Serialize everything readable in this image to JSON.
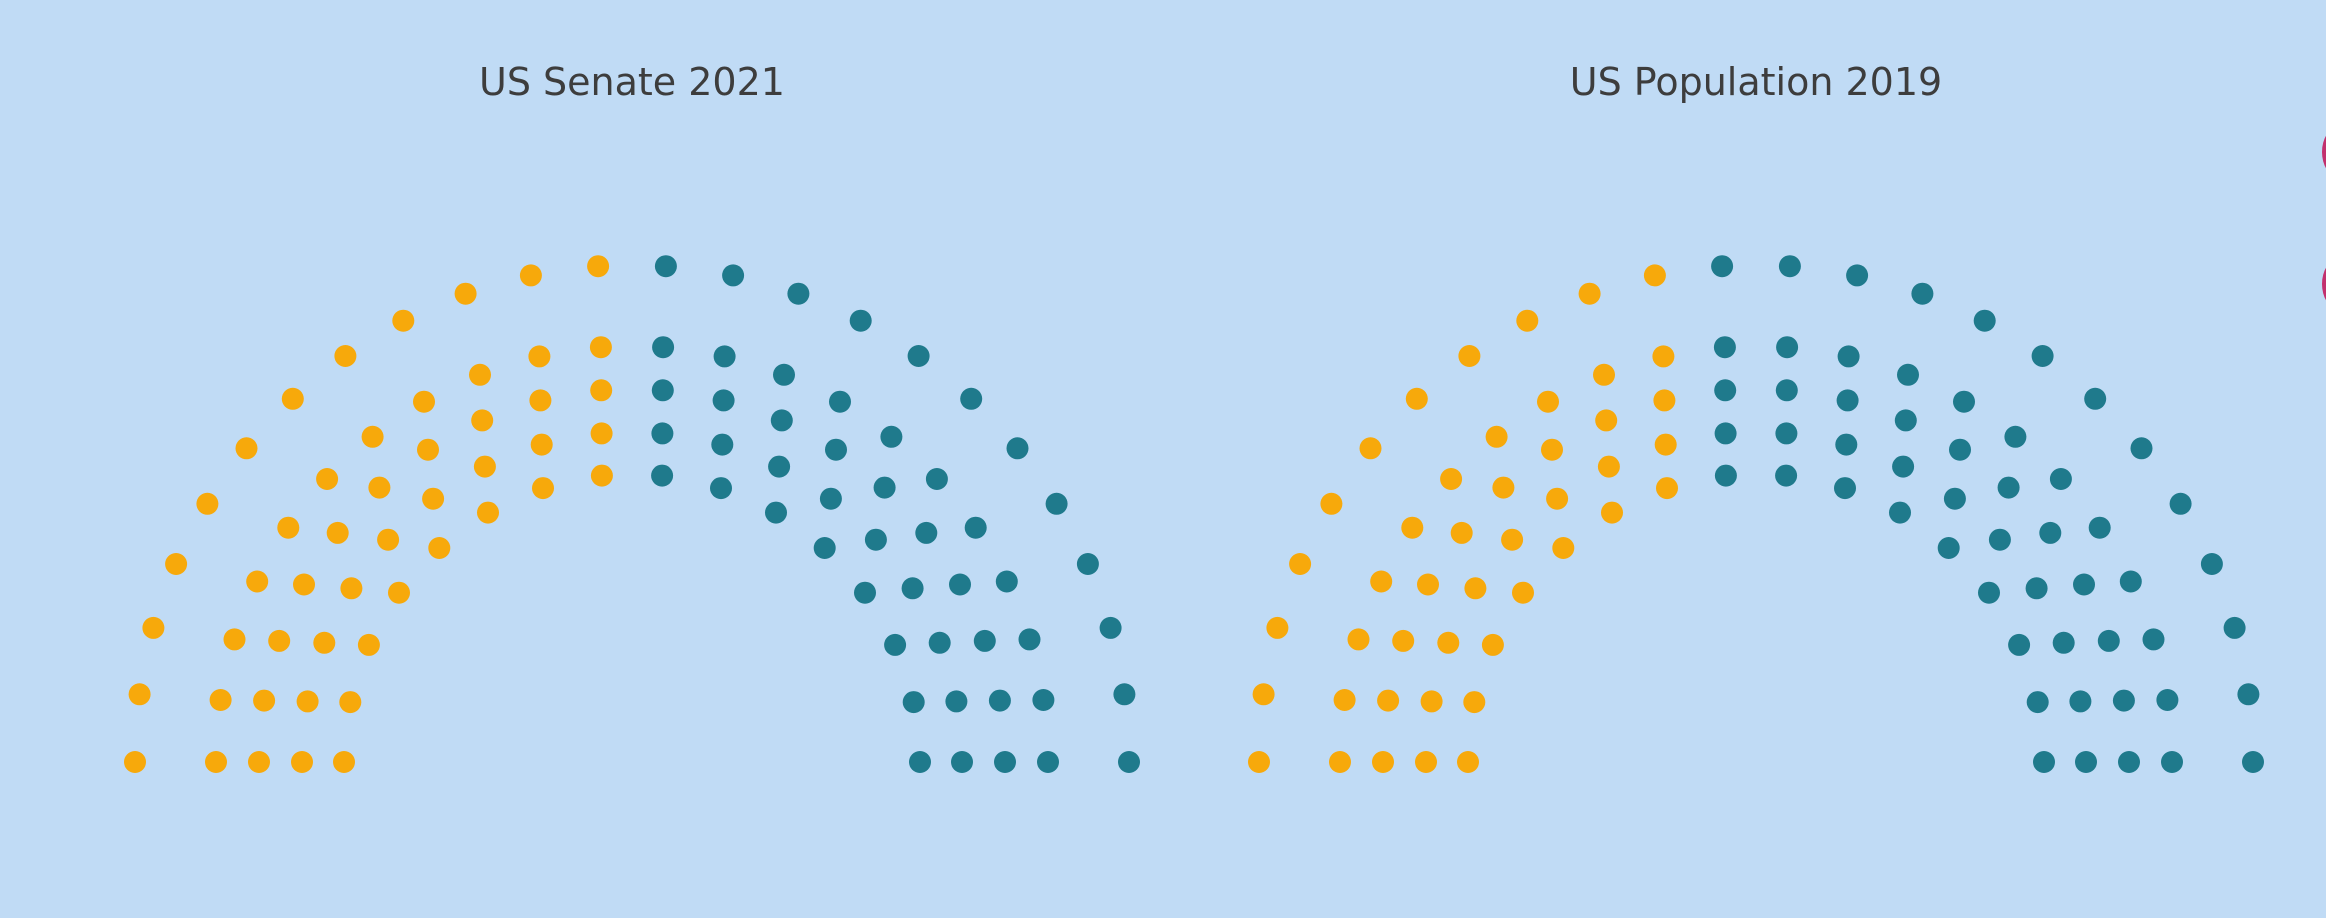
{
  "chart_data": [
    {
      "type": "parliament",
      "title": "US Senate 2021",
      "series": [
        {
          "values": [
            50
          ],
          "color": "#f7a90b"
        },
        {
          "values": [
            50
          ],
          "color": "#1f7a8c"
        }
      ]
    },
    {
      "type": "parliament",
      "title": "US Population 2019",
      "series": [
        {
          "values": [
            45
          ],
          "color": "#f7a90b"
        },
        {
          "values": [
            55
          ],
          "color": "#1f7a8c"
        }
      ]
    }
  ],
  "colors": {
    "background": "#c0dbf5",
    "title": "#3d3d3d",
    "edge_accent": "#c2306e"
  }
}
